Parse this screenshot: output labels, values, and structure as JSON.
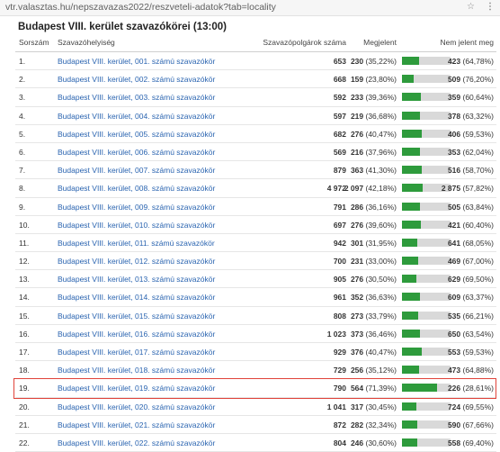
{
  "browser": {
    "url": "vtr.valasztas.hu/nepszavazas2022/reszveteli-adatok?tab=locality"
  },
  "title": "Budapest VIII. kerület szavazókörei (13:00)",
  "headers": {
    "sorszam": "Sorszám",
    "hely": "Szavazóhelyiség",
    "voters": "Szavazópolgárok száma",
    "megjelent": "Megjelent",
    "nem_jelent": "Nem jelent meg"
  },
  "rows": [
    {
      "num": "1.",
      "name": "Budapest VIII. kerület, 001. számú szavazókör",
      "voters": "653",
      "m_count": "230",
      "m_pct": "(35,22%)",
      "n_count": "423",
      "n_pct": "(64,78%)",
      "share": 0.3522
    },
    {
      "num": "2.",
      "name": "Budapest VIII. kerület, 002. számú szavazókör",
      "voters": "668",
      "m_count": "159",
      "m_pct": "(23,80%)",
      "n_count": "509",
      "n_pct": "(76,20%)",
      "share": 0.238
    },
    {
      "num": "3.",
      "name": "Budapest VIII. kerület, 003. számú szavazókör",
      "voters": "592",
      "m_count": "233",
      "m_pct": "(39,36%)",
      "n_count": "359",
      "n_pct": "(60,64%)",
      "share": 0.3936
    },
    {
      "num": "4.",
      "name": "Budapest VIII. kerület, 004. számú szavazókör",
      "voters": "597",
      "m_count": "219",
      "m_pct": "(36,68%)",
      "n_count": "378",
      "n_pct": "(63,32%)",
      "share": 0.3668
    },
    {
      "num": "5.",
      "name": "Budapest VIII. kerület, 005. számú szavazókör",
      "voters": "682",
      "m_count": "276",
      "m_pct": "(40,47%)",
      "n_count": "406",
      "n_pct": "(59,53%)",
      "share": 0.4047
    },
    {
      "num": "6.",
      "name": "Budapest VIII. kerület, 006. számú szavazókör",
      "voters": "569",
      "m_count": "216",
      "m_pct": "(37,96%)",
      "n_count": "353",
      "n_pct": "(62,04%)",
      "share": 0.3796
    },
    {
      "num": "7.",
      "name": "Budapest VIII. kerület, 007. számú szavazókör",
      "voters": "879",
      "m_count": "363",
      "m_pct": "(41,30%)",
      "n_count": "516",
      "n_pct": "(58,70%)",
      "share": 0.413
    },
    {
      "num": "8.",
      "name": "Budapest VIII. kerület, 008. számú szavazókör",
      "voters": "4 972",
      "m_count": "2 097",
      "m_pct": "(42,18%)",
      "n_count": "2 875",
      "n_pct": "(57,82%)",
      "share": 0.4218
    },
    {
      "num": "9.",
      "name": "Budapest VIII. kerület, 009. számú szavazókör",
      "voters": "791",
      "m_count": "286",
      "m_pct": "(36,16%)",
      "n_count": "505",
      "n_pct": "(63,84%)",
      "share": 0.3616
    },
    {
      "num": "10.",
      "name": "Budapest VIII. kerület, 010. számú szavazókör",
      "voters": "697",
      "m_count": "276",
      "m_pct": "(39,60%)",
      "n_count": "421",
      "n_pct": "(60,40%)",
      "share": 0.396
    },
    {
      "num": "11.",
      "name": "Budapest VIII. kerület, 011. számú szavazókör",
      "voters": "942",
      "m_count": "301",
      "m_pct": "(31,95%)",
      "n_count": "641",
      "n_pct": "(68,05%)",
      "share": 0.3195
    },
    {
      "num": "12.",
      "name": "Budapest VIII. kerület, 012. számú szavazókör",
      "voters": "700",
      "m_count": "231",
      "m_pct": "(33,00%)",
      "n_count": "469",
      "n_pct": "(67,00%)",
      "share": 0.33
    },
    {
      "num": "13.",
      "name": "Budapest VIII. kerület, 013. számú szavazókör",
      "voters": "905",
      "m_count": "276",
      "m_pct": "(30,50%)",
      "n_count": "629",
      "n_pct": "(69,50%)",
      "share": 0.305
    },
    {
      "num": "14.",
      "name": "Budapest VIII. kerület, 014. számú szavazókör",
      "voters": "961",
      "m_count": "352",
      "m_pct": "(36,63%)",
      "n_count": "609",
      "n_pct": "(63,37%)",
      "share": 0.3663
    },
    {
      "num": "15.",
      "name": "Budapest VIII. kerület, 015. számú szavazókör",
      "voters": "808",
      "m_count": "273",
      "m_pct": "(33,79%)",
      "n_count": "535",
      "n_pct": "(66,21%)",
      "share": 0.3379
    },
    {
      "num": "16.",
      "name": "Budapest VIII. kerület, 016. számú szavazókör",
      "voters": "1 023",
      "m_count": "373",
      "m_pct": "(36,46%)",
      "n_count": "650",
      "n_pct": "(63,54%)",
      "share": 0.3646
    },
    {
      "num": "17.",
      "name": "Budapest VIII. kerület, 017. számú szavazókör",
      "voters": "929",
      "m_count": "376",
      "m_pct": "(40,47%)",
      "n_count": "553",
      "n_pct": "(59,53%)",
      "share": 0.4047
    },
    {
      "num": "18.",
      "name": "Budapest VIII. kerület, 018. számú szavazókör",
      "voters": "729",
      "m_count": "256",
      "m_pct": "(35,12%)",
      "n_count": "473",
      "n_pct": "(64,88%)",
      "share": 0.3512
    },
    {
      "num": "19.",
      "name": "Budapest VIII. kerület, 019. számú szavazókör",
      "voters": "790",
      "m_count": "564",
      "m_pct": "(71,39%)",
      "n_count": "226",
      "n_pct": "(28,61%)",
      "share": 0.7139
    },
    {
      "num": "20.",
      "name": "Budapest VIII. kerület, 020. számú szavazókör",
      "voters": "1 041",
      "m_count": "317",
      "m_pct": "(30,45%)",
      "n_count": "724",
      "n_pct": "(69,55%)",
      "share": 0.3045
    },
    {
      "num": "21.",
      "name": "Budapest VIII. kerület, 021. számú szavazókör",
      "voters": "872",
      "m_count": "282",
      "m_pct": "(32,34%)",
      "n_count": "590",
      "n_pct": "(67,66%)",
      "share": 0.3234
    },
    {
      "num": "22.",
      "name": "Budapest VIII. kerület, 022. számú szavazókör",
      "voters": "804",
      "m_count": "246",
      "m_pct": "(30,60%)",
      "n_count": "558",
      "n_pct": "(69,40%)",
      "share": 0.306
    }
  ],
  "colors": {
    "bar_fill": "#2e9b3c",
    "bar_track": "#d9d9d9",
    "highlight": "#e0433a",
    "link": "#2a64b0"
  }
}
